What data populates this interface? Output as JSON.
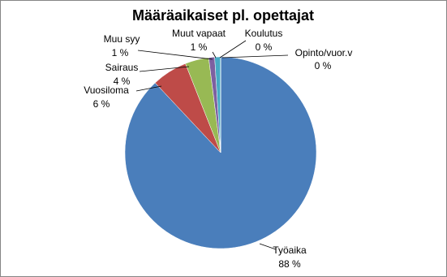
{
  "chart_data": {
    "type": "pie",
    "title": "Määräaikaiset  pl. opettajat",
    "categories": [
      "Työaika",
      "Vuosiloma",
      "Sairaus",
      "Muu syy",
      "Muut vapaat",
      "Koulutus",
      "Opinto/vuor.v"
    ],
    "values": [
      88,
      6,
      4,
      1,
      1,
      0,
      0
    ],
    "value_labels": [
      "88 %",
      "6 %",
      "4 %",
      "1 %",
      "1 %",
      "0 %",
      "0 %"
    ],
    "colors": [
      "#4a7ebb",
      "#be4b48",
      "#98b954",
      "#7d60a0",
      "#46aac5",
      "#f79646",
      "#8db3e2"
    ]
  }
}
